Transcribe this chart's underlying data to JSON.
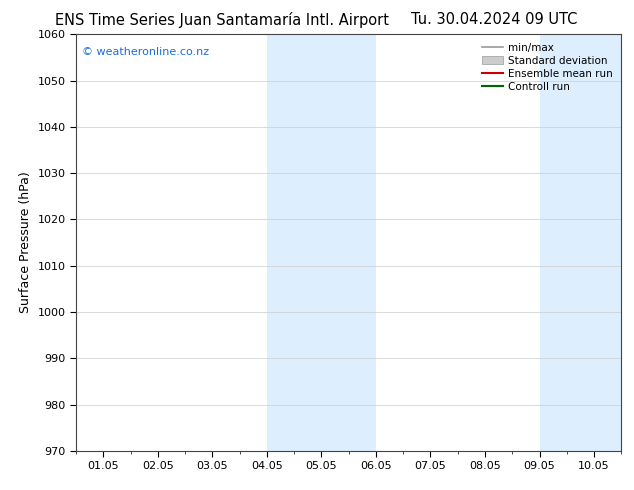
{
  "title_left": "ENS Time Series Juan Santamaría Intl. Airport",
  "title_right": "Tu. 30.04.2024 09 UTC",
  "ylabel": "Surface Pressure (hPa)",
  "ylim": [
    970,
    1060
  ],
  "yticks": [
    970,
    980,
    990,
    1000,
    1010,
    1020,
    1030,
    1040,
    1050,
    1060
  ],
  "xtick_labels": [
    "01.05",
    "02.05",
    "03.05",
    "04.05",
    "05.05",
    "06.05",
    "07.05",
    "08.05",
    "09.05",
    "10.05"
  ],
  "xtick_positions": [
    0,
    1,
    2,
    3,
    4,
    5,
    6,
    7,
    8,
    9
  ],
  "xlim": [
    -0.5,
    9.5
  ],
  "shaded_bands": [
    {
      "xstart": 3.0,
      "xend": 5.0
    },
    {
      "xstart": 8.0,
      "xend": 9.5
    }
  ],
  "shade_color": "#ddeeff",
  "background_color": "#ffffff",
  "watermark": "© weatheronline.co.nz",
  "watermark_color": "#1a6fd4",
  "legend_items": [
    {
      "label": "min/max",
      "color": "#999999",
      "lw": 1.2,
      "type": "line"
    },
    {
      "label": "Standard deviation",
      "color": "#cccccc",
      "lw": 8,
      "type": "patch"
    },
    {
      "label": "Ensemble mean run",
      "color": "#cc0000",
      "lw": 1.5,
      "type": "line"
    },
    {
      "label": "Controll run",
      "color": "#006600",
      "lw": 1.5,
      "type": "line"
    }
  ],
  "title_fontsize": 10.5,
  "ylabel_fontsize": 9,
  "tick_fontsize": 8,
  "watermark_fontsize": 8,
  "legend_fontsize": 7.5
}
